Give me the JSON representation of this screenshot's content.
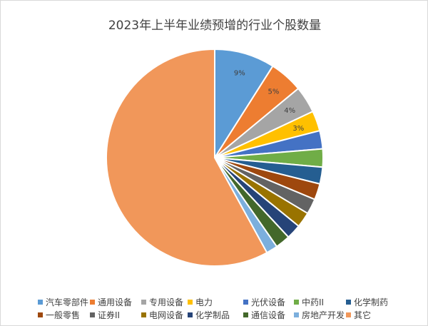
{
  "chart_data": {
    "type": "pie",
    "title": "2023年上半年业绩预增的行业个股数量",
    "categories": [
      "汽车零部件",
      "通用设备",
      "专用设备",
      "电力",
      "光伏设备",
      "中药II",
      "化学制药",
      "一般零售",
      "证券II",
      "电网设备",
      "化学制品",
      "通信设备",
      "房地产开发",
      "其它"
    ],
    "values": [
      9,
      5,
      4,
      3,
      2.7,
      2.7,
      2.5,
      2.4,
      2.3,
      2.3,
      2.2,
      2.2,
      1.7,
      58
    ],
    "data_labels": [
      "9%",
      "5%",
      "4%",
      "3%",
      "",
      "",
      "",
      "",
      "",
      "",
      "",
      "",
      "",
      ""
    ],
    "colors": [
      "#5B9BD5",
      "#ED7D31",
      "#A5A5A5",
      "#FFC000",
      "#4472C4",
      "#70AD47",
      "#255E91",
      "#9E480E",
      "#636363",
      "#997300",
      "#264478",
      "#43682B",
      "#7CAFDD",
      "#F1975A"
    ],
    "legend_position": "bottom"
  }
}
